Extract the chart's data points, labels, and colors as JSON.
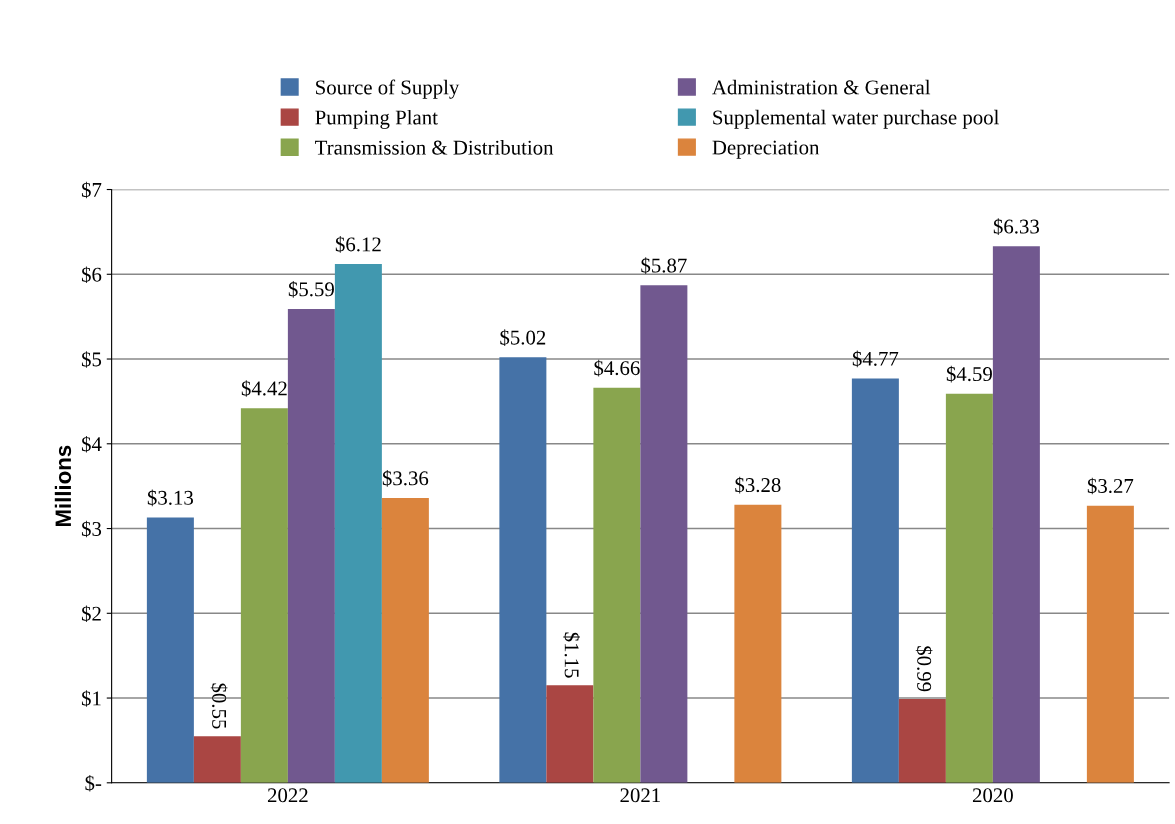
{
  "chart_data": {
    "type": "bar",
    "ylabel": "Millions",
    "categories": [
      "2022",
      "2021",
      "2020"
    ],
    "series": [
      {
        "name": "Source of Supply",
        "color": "#4572a7",
        "values": [
          3.13,
          5.02,
          4.77
        ],
        "value_labels": [
          "$3.13",
          "$5.02",
          "$4.77"
        ]
      },
      {
        "name": "Pumping Plant",
        "color": "#aa4643",
        "values": [
          0.55,
          1.15,
          0.99
        ],
        "value_labels": [
          "$0.55",
          "$1.15",
          "$0.99"
        ]
      },
      {
        "name": "Transmission & Distribution",
        "color": "#89a54e",
        "values": [
          4.42,
          4.66,
          4.59
        ],
        "value_labels": [
          "$4.42",
          "$4.66",
          "$4.59"
        ]
      },
      {
        "name": "Administration & General",
        "color": "#71588f",
        "values": [
          5.59,
          5.87,
          6.33
        ],
        "value_labels": [
          "$5.59",
          "$5.87",
          "$6.33"
        ]
      },
      {
        "name": "Supplemental water purchase pool",
        "color": "#4198af",
        "values": [
          6.12,
          null,
          null
        ],
        "value_labels": [
          "$6.12",
          null,
          null
        ]
      },
      {
        "name": "Depreciation",
        "color": "#db843d",
        "values": [
          3.36,
          3.28,
          3.27
        ],
        "value_labels": [
          "$3.36",
          "$3.28",
          "$3.27"
        ]
      }
    ],
    "ylim": [
      0,
      7
    ],
    "yticks": [
      {
        "value": 0,
        "label": "$-"
      },
      {
        "value": 1,
        "label": "$1"
      },
      {
        "value": 2,
        "label": "$2"
      },
      {
        "value": 3,
        "label": "$3"
      },
      {
        "value": 4,
        "label": "$4"
      },
      {
        "value": 5,
        "label": "$5"
      },
      {
        "value": 6,
        "label": "$6"
      },
      {
        "value": 7,
        "label": "$7"
      }
    ],
    "grid": "y",
    "legend": "top"
  }
}
